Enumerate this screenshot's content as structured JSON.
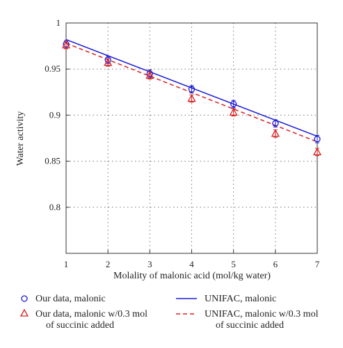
{
  "chart_data": {
    "type": "scatter",
    "xlabel": "Molality of malonic acid (mol/kg water)",
    "ylabel": "Water activity",
    "xlim": [
      1,
      7
    ],
    "ylim": [
      0.75,
      1.0
    ],
    "xticks": [
      1,
      2,
      3,
      4,
      5,
      6,
      7
    ],
    "yticks": [
      0.8,
      0.85,
      0.9,
      0.95,
      1
    ],
    "yticklabels": [
      "0.8",
      "0.85",
      "0.9",
      "0.95",
      "1"
    ],
    "grid": true,
    "legend": "bottom",
    "series": [
      {
        "name": "Our data, malonic",
        "kind": "points",
        "marker": "circle",
        "color": "#1a1ad6",
        "x": [
          1,
          2,
          3,
          4,
          5,
          6,
          7
        ],
        "y": [
          0.977,
          0.96,
          0.945,
          0.928,
          0.912,
          0.891,
          0.874
        ],
        "err": [
          0.004,
          0.004,
          0.004,
          0.004,
          0.004,
          0.004,
          0.004
        ]
      },
      {
        "name": "Our data, malonic w/0.3 mol of succinic added",
        "name_lines": [
          "Our data, malonic w/0.3 mol",
          "of succinic added"
        ],
        "kind": "points",
        "marker": "triangle",
        "color": "#d62020",
        "x": [
          1,
          2,
          3,
          4,
          5,
          6,
          7
        ],
        "y": [
          0.976,
          0.957,
          0.943,
          0.918,
          0.903,
          0.88,
          0.86
        ],
        "err": [
          0.004,
          0.004,
          0.004,
          0.004,
          0.004,
          0.004,
          0.004
        ]
      },
      {
        "name": "UNIFAC, malonic",
        "kind": "line",
        "style": "solid",
        "color": "#1a1ad6",
        "x": [
          1,
          7
        ],
        "y": [
          0.982,
          0.877
        ]
      },
      {
        "name": "UNIFAC, malonic w/0.3 mol of succinic added",
        "name_lines": [
          "UNIFAC, malonic w/0.3 mol",
          "of succinic added"
        ],
        "kind": "line",
        "style": "dashed",
        "color": "#d62020",
        "x": [
          1,
          7
        ],
        "y": [
          0.978,
          0.871
        ]
      }
    ]
  }
}
